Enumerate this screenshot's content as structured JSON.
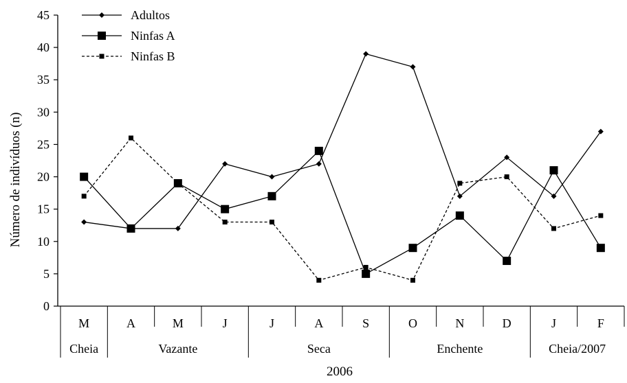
{
  "chart_data": {
    "type": "line",
    "ylabel": "Número de indivíduos  (n)",
    "ylim": [
      0,
      45
    ],
    "yticks": [
      0,
      5,
      10,
      15,
      20,
      25,
      30,
      35,
      40,
      45
    ],
    "categories": [
      "M",
      "A",
      "M",
      "J",
      "J",
      "A",
      "S",
      "O",
      "N",
      "D",
      "J",
      "F"
    ],
    "periods": [
      {
        "label": "Cheia",
        "start": 0,
        "end": 0
      },
      {
        "label": "Vazante",
        "start": 1,
        "end": 3
      },
      {
        "label": "Seca",
        "start": 4,
        "end": 6
      },
      {
        "label": "Enchente",
        "start": 7,
        "end": 9
      },
      {
        "label": "Cheia/2007",
        "start": 10,
        "end": 11
      }
    ],
    "year_label": "2006",
    "grid": false,
    "legend_position": "top-left",
    "series": [
      {
        "name": "Adultos",
        "values": [
          13,
          12,
          12,
          22,
          20,
          22,
          39,
          37,
          17,
          23,
          17,
          27
        ],
        "marker": "diamond",
        "line": "solid"
      },
      {
        "name": "Ninfas A",
        "values": [
          20,
          12,
          19,
          15,
          17,
          24,
          5,
          9,
          14,
          7,
          21,
          9
        ],
        "marker": "square-large",
        "line": "solid"
      },
      {
        "name": "Ninfas B",
        "values": [
          17,
          26,
          19,
          13,
          13,
          4,
          6,
          4,
          19,
          20,
          12,
          14
        ],
        "marker": "square-small",
        "line": "dashed"
      }
    ]
  }
}
